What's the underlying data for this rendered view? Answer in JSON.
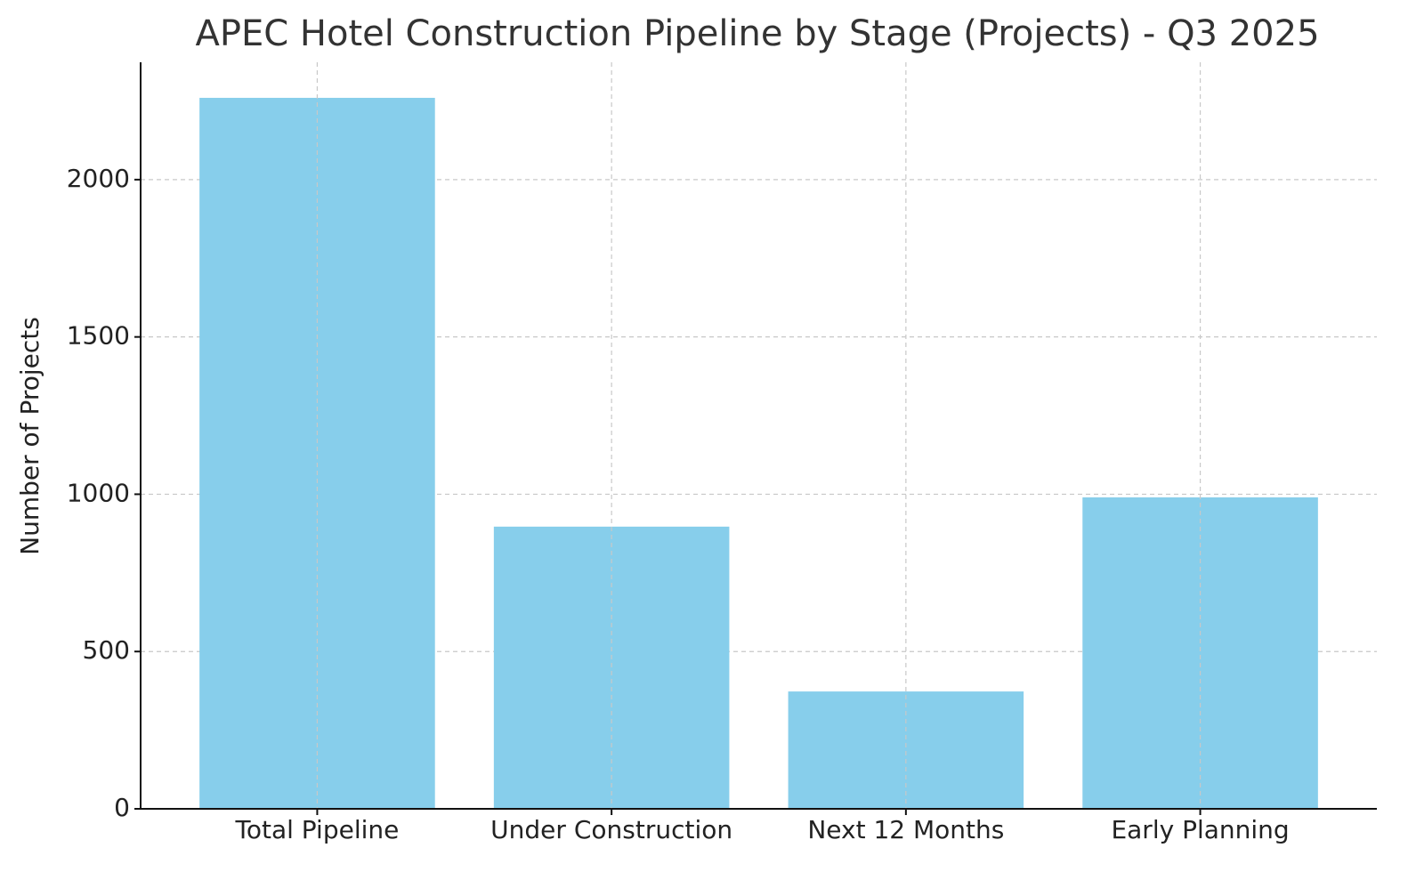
{
  "chart_data": {
    "type": "bar",
    "title": "APEC Hotel Construction Pipeline by Stage (Projects) - Q3 2025",
    "y_label": "Number of Projects",
    "categories": [
      "Total Pipeline",
      "Under Construction",
      "Next 12 Months",
      "Early Planning"
    ],
    "values": [
      2260,
      897,
      373,
      990
    ],
    "color": "#87ceeb",
    "ylim": [
      0,
      2373
    ],
    "yticks": [
      0,
      500,
      1000,
      1500,
      2000
    ],
    "grid": true
  }
}
